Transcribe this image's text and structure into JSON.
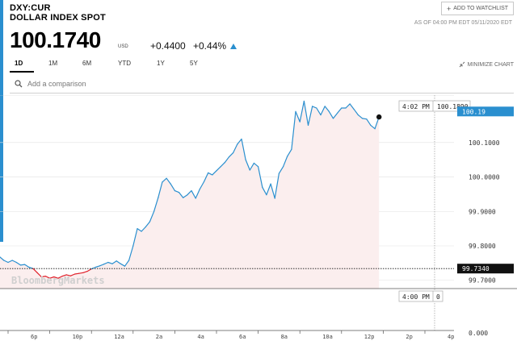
{
  "header": {
    "ticker": "DXY:CUR",
    "name": "DOLLAR INDEX SPOT",
    "price": "100.1740",
    "currency": "USD",
    "change": "+0.4400",
    "change_pct": "+0.44%",
    "watchlist_label": "ADD TO WATCHLIST",
    "as_of": "AS OF 04:00 PM EDT 05/11/2020 EDT",
    "accent_color": "#2a8fcf"
  },
  "tabs": [
    {
      "label": "1D",
      "active": true
    },
    {
      "label": "1M"
    },
    {
      "label": "6M"
    },
    {
      "label": "YTD"
    },
    {
      "label": "1Y"
    },
    {
      "label": "5Y"
    }
  ],
  "minimize_label": "MINIMIZE CHART",
  "compare_placeholder": "Add a comparison",
  "chart_data": {
    "type": "line",
    "watermark": "BloombergMarkets",
    "colors": {
      "up": "#2a8fcf",
      "down": "#e0202a",
      "fill": "#fbeeee"
    },
    "x_ticks": [
      "6p",
      "10p",
      "12a",
      "2a",
      "4a",
      "6a",
      "8a",
      "10a",
      "12p",
      "2p",
      "4p"
    ],
    "y_ticks": [
      "100.1000",
      "100.0000",
      "99.9000",
      "99.8000",
      "99.7000"
    ],
    "ylim": [
      99.676,
      100.2375
    ],
    "previous_close": "99.7340",
    "last_label": "100.19",
    "cursor_time": "4:02 PM",
    "cursor_value": "100.1890",
    "volume_time": "4:00 PM",
    "volume_value": "0",
    "volume_axis": "0.000",
    "series": [
      {
        "values": [
          [
            -3.0,
            99.84
          ],
          [
            -2.8,
            99.852
          ],
          [
            -2.6,
            99.832
          ],
          [
            -2.4,
            99.818
          ],
          [
            -2.2,
            99.812
          ],
          [
            -2.0,
            99.79
          ],
          [
            -1.8,
            99.786
          ],
          [
            -1.6,
            99.775
          ],
          [
            -1.4,
            99.768
          ],
          [
            -1.2,
            99.758
          ],
          [
            -1.0,
            99.752
          ],
          [
            -0.8,
            99.758
          ],
          [
            -0.6,
            99.752
          ],
          [
            -0.4,
            99.744
          ],
          [
            -0.2,
            99.746
          ],
          [
            0.0,
            99.738
          ],
          [
            0.2,
            99.734
          ],
          [
            0.4,
            99.722
          ],
          [
            0.6,
            99.71
          ],
          [
            0.8,
            99.712
          ],
          [
            1.0,
            99.706
          ],
          [
            1.2,
            99.71
          ],
          [
            1.4,
            99.706
          ],
          [
            1.6,
            99.712
          ],
          [
            1.8,
            99.716
          ],
          [
            2.0,
            99.713
          ],
          [
            2.2,
            99.718
          ],
          [
            2.4,
            99.72
          ],
          [
            2.6,
            99.722
          ],
          [
            2.8,
            99.726
          ],
          [
            3.0,
            99.733
          ],
          [
            3.2,
            99.738
          ],
          [
            3.4,
            99.742
          ],
          [
            3.6,
            99.747
          ],
          [
            3.8,
            99.752
          ],
          [
            4.0,
            99.748
          ],
          [
            4.2,
            99.756
          ],
          [
            4.4,
            99.748
          ],
          [
            4.6,
            99.741
          ],
          [
            4.8,
            99.758
          ],
          [
            5.0,
            99.8
          ],
          [
            5.2,
            99.85
          ],
          [
            5.4,
            99.842
          ],
          [
            5.6,
            99.855
          ],
          [
            5.8,
            99.87
          ],
          [
            6.0,
            99.9
          ],
          [
            6.2,
            99.94
          ],
          [
            6.4,
            99.985
          ],
          [
            6.6,
            99.996
          ],
          [
            6.8,
            99.98
          ],
          [
            7.0,
            99.96
          ],
          [
            7.2,
            99.955
          ],
          [
            7.4,
            99.94
          ],
          [
            7.6,
            99.948
          ],
          [
            7.8,
            99.96
          ],
          [
            8.0,
            99.938
          ],
          [
            8.2,
            99.965
          ],
          [
            8.4,
            99.986
          ],
          [
            8.6,
            100.012
          ],
          [
            8.8,
            100.006
          ],
          [
            9.0,
            100.018
          ],
          [
            9.2,
            100.03
          ],
          [
            9.4,
            100.042
          ],
          [
            9.6,
            100.058
          ],
          [
            9.8,
            100.07
          ],
          [
            10.0,
            100.095
          ],
          [
            10.2,
            100.11
          ],
          [
            10.4,
            100.05
          ],
          [
            10.6,
            100.02
          ],
          [
            10.8,
            100.04
          ],
          [
            11.0,
            100.03
          ],
          [
            11.2,
            99.97
          ],
          [
            11.4,
            99.948
          ],
          [
            11.6,
            99.98
          ],
          [
            11.8,
            99.938
          ],
          [
            12.0,
            100.01
          ],
          [
            12.2,
            100.03
          ],
          [
            12.4,
            100.06
          ],
          [
            12.6,
            100.08
          ],
          [
            12.8,
            100.19
          ],
          [
            13.0,
            100.16
          ],
          [
            13.2,
            100.22
          ],
          [
            13.4,
            100.15
          ],
          [
            13.6,
            100.205
          ],
          [
            13.8,
            100.2
          ],
          [
            14.0,
            100.18
          ],
          [
            14.2,
            100.205
          ],
          [
            14.4,
            100.19
          ],
          [
            14.6,
            100.17
          ],
          [
            14.8,
            100.185
          ],
          [
            15.0,
            100.2
          ],
          [
            15.2,
            100.2
          ],
          [
            15.4,
            100.212
          ],
          [
            15.6,
            100.196
          ],
          [
            15.8,
            100.18
          ],
          [
            16.0,
            100.17
          ],
          [
            16.2,
            100.168
          ],
          [
            16.4,
            100.15
          ],
          [
            16.6,
            100.14
          ],
          [
            16.8,
            100.174
          ]
        ]
      }
    ]
  }
}
